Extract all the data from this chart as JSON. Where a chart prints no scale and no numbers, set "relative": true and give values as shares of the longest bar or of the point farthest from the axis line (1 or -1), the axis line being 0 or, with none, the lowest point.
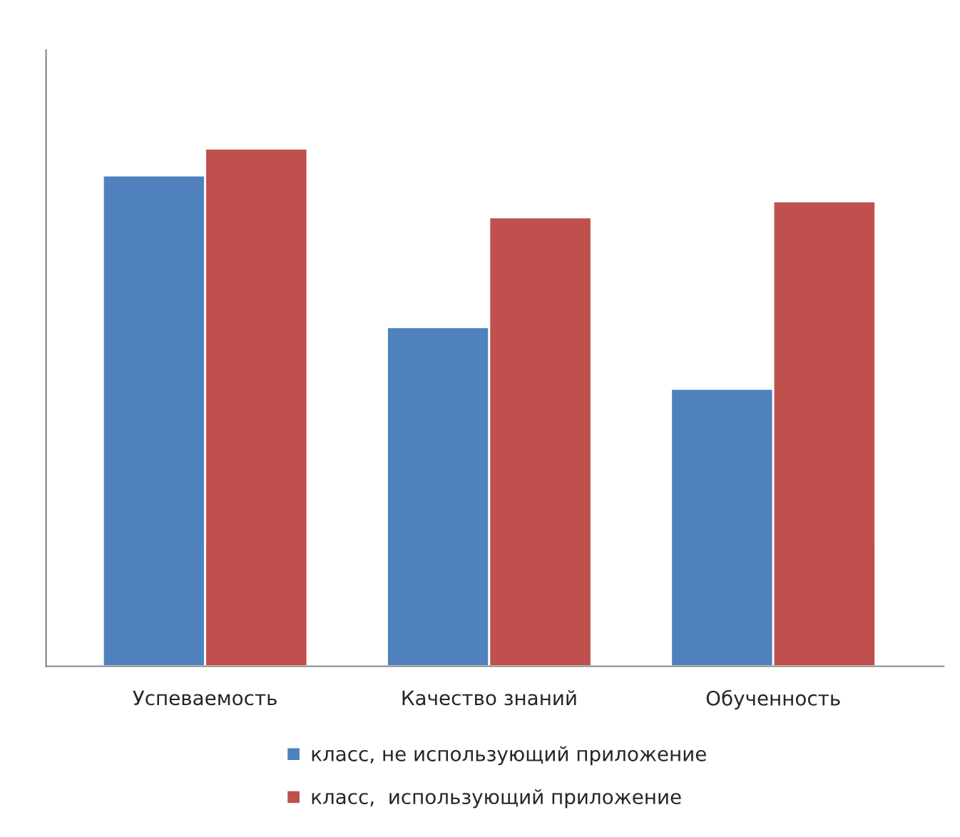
{
  "chart_data": {
    "type": "bar",
    "relative": true,
    "categories": [
      "Успеваемость",
      "Качество знаний",
      "Обученность"
    ],
    "series": [
      {
        "name": "класс, не использующий приложение",
        "color": "#4f81bd",
        "values": [
          0.948,
          0.655,
          0.536
        ]
      },
      {
        "name": "класс,  использующий приложение",
        "color": "#c0504d",
        "values": [
          1,
          0.867,
          0.898
        ]
      }
    ],
    "legend": "bottom",
    "grid": false
  }
}
